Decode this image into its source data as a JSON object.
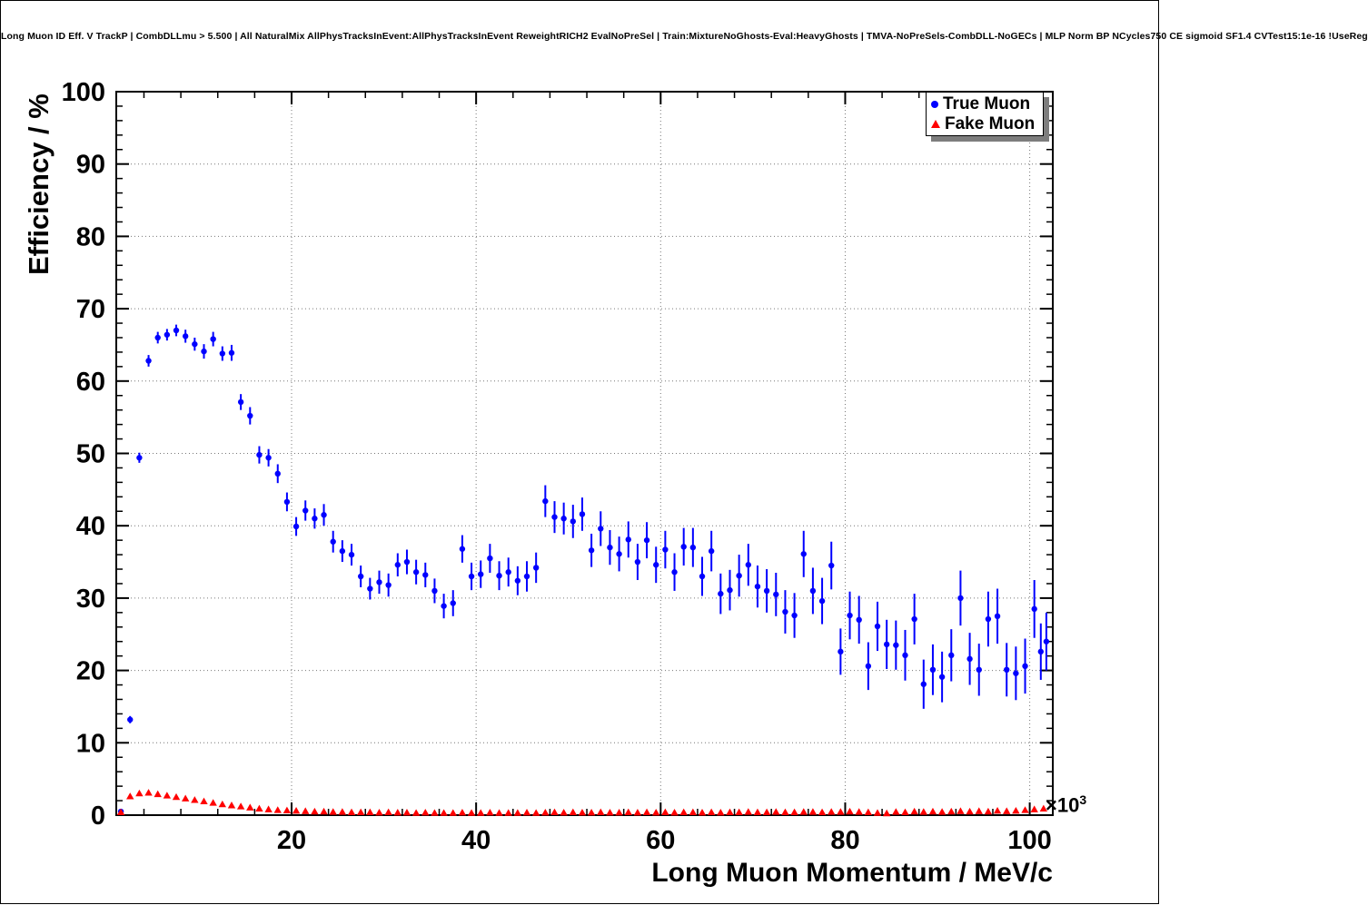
{
  "chart_data": {
    "type": "scatter",
    "title": "Long Muon ID Eff. V TrackP | CombDLLmu > 5.500 | All NaturalMix AllPhysTracksInEvent:AllPhysTracksInEvent ReweightRICH2 EvalNoPreSel | Train:MixtureNoGhosts-Eval:HeavyGhosts | TMVA-NoPreSels-CombDLL-NoGECs | MLP Norm BP NCycles750 CE sigmoid SF1.4 CVTest15:1e-16 !UseReg",
    "xlabel": "Long Muon Momentum / MeV/c",
    "ylabel": "Efficiency / %",
    "x_scale_base": "×10",
    "x_scale_exp": "3",
    "xlim": [
      1000,
      102500
    ],
    "ylim": [
      0,
      100
    ],
    "grid": true,
    "legend_position": "top-right",
    "x_major_step": 20000,
    "x_minor_step": 4000,
    "y_minor_step": 2,
    "x_ticks": [
      {
        "value": 20000,
        "label": "20"
      },
      {
        "value": 40000,
        "label": "40"
      },
      {
        "value": 60000,
        "label": "60"
      },
      {
        "value": 80000,
        "label": "80"
      },
      {
        "value": 100000,
        "label": "100"
      }
    ],
    "y_ticks": [
      {
        "value": 0,
        "label": "0"
      },
      {
        "value": 10,
        "label": "10"
      },
      {
        "value": 20,
        "label": "20"
      },
      {
        "value": 30,
        "label": "30"
      },
      {
        "value": 40,
        "label": "40"
      },
      {
        "value": 50,
        "label": "50"
      },
      {
        "value": 60,
        "label": "60"
      },
      {
        "value": 70,
        "label": "70"
      },
      {
        "value": 80,
        "label": "80"
      },
      {
        "value": 90,
        "label": "90"
      },
      {
        "value": 100,
        "label": "100"
      }
    ],
    "series": [
      {
        "name": "True Muon",
        "marker": "circle",
        "color": "#0000ff",
        "points": [
          [
            1500,
            0.5,
            0.3
          ],
          [
            2500,
            13.2,
            0.5
          ],
          [
            3500,
            49.4,
            0.7
          ],
          [
            4500,
            62.8,
            0.8
          ],
          [
            5500,
            66.0,
            0.8
          ],
          [
            6500,
            66.4,
            0.8
          ],
          [
            7500,
            67.0,
            0.8
          ],
          [
            8500,
            66.2,
            0.9
          ],
          [
            9500,
            65.1,
            0.9
          ],
          [
            10500,
            64.1,
            1.0
          ],
          [
            11500,
            65.8,
            1.0
          ],
          [
            12500,
            63.8,
            1.0
          ],
          [
            13500,
            63.9,
            1.1
          ],
          [
            14500,
            57.1,
            1.1
          ],
          [
            15500,
            55.2,
            1.2
          ],
          [
            16500,
            49.8,
            1.2
          ],
          [
            17500,
            49.4,
            1.2
          ],
          [
            18500,
            47.2,
            1.3
          ],
          [
            19500,
            43.3,
            1.3
          ],
          [
            20500,
            39.9,
            1.3
          ],
          [
            21500,
            42.1,
            1.4
          ],
          [
            22500,
            41.0,
            1.4
          ],
          [
            23500,
            41.5,
            1.5
          ],
          [
            24500,
            37.8,
            1.5
          ],
          [
            25500,
            36.5,
            1.5
          ],
          [
            26500,
            36.0,
            1.5
          ],
          [
            27500,
            33.0,
            1.5
          ],
          [
            28500,
            31.3,
            1.5
          ],
          [
            29500,
            32.2,
            1.6
          ],
          [
            30500,
            31.8,
            1.6
          ],
          [
            31500,
            34.6,
            1.6
          ],
          [
            32500,
            35.0,
            1.7
          ],
          [
            33500,
            33.6,
            1.7
          ],
          [
            34500,
            33.2,
            1.7
          ],
          [
            35500,
            31.0,
            1.7
          ],
          [
            36500,
            28.9,
            1.7
          ],
          [
            37500,
            29.3,
            1.8
          ],
          [
            38500,
            36.8,
            1.9
          ],
          [
            39500,
            33.0,
            1.9
          ],
          [
            40500,
            33.3,
            1.9
          ],
          [
            41500,
            35.5,
            2.0
          ],
          [
            42500,
            33.1,
            2.0
          ],
          [
            43500,
            33.6,
            2.0
          ],
          [
            44500,
            32.4,
            2.0
          ],
          [
            45500,
            33.0,
            2.1
          ],
          [
            46500,
            34.2,
            2.1
          ],
          [
            47500,
            43.4,
            2.2
          ],
          [
            48500,
            41.2,
            2.2
          ],
          [
            49500,
            41.0,
            2.2
          ],
          [
            50500,
            40.6,
            2.3
          ],
          [
            51500,
            41.6,
            2.3
          ],
          [
            52500,
            36.6,
            2.3
          ],
          [
            53500,
            39.6,
            2.4
          ],
          [
            54500,
            37.0,
            2.4
          ],
          [
            55500,
            36.1,
            2.4
          ],
          [
            56500,
            38.1,
            2.5
          ],
          [
            57500,
            35.0,
            2.5
          ],
          [
            58500,
            38.0,
            2.5
          ],
          [
            59500,
            34.6,
            2.5
          ],
          [
            60500,
            36.7,
            2.6
          ],
          [
            61500,
            33.6,
            2.6
          ],
          [
            62500,
            37.1,
            2.6
          ],
          [
            63500,
            37.0,
            2.7
          ],
          [
            64500,
            33.0,
            2.7
          ],
          [
            65500,
            36.5,
            2.8
          ],
          [
            66500,
            30.6,
            2.8
          ],
          [
            67500,
            31.1,
            2.8
          ],
          [
            68500,
            33.1,
            2.9
          ],
          [
            69500,
            34.6,
            2.9
          ],
          [
            70500,
            31.6,
            2.9
          ],
          [
            71500,
            31.0,
            3.0
          ],
          [
            72500,
            30.5,
            3.0
          ],
          [
            73500,
            28.1,
            3.0
          ],
          [
            74500,
            27.6,
            3.1
          ],
          [
            75500,
            36.1,
            3.2
          ],
          [
            76500,
            31.0,
            3.2
          ],
          [
            77500,
            29.6,
            3.2
          ],
          [
            78500,
            34.5,
            3.3
          ],
          [
            79500,
            22.6,
            3.2
          ],
          [
            80500,
            27.6,
            3.3
          ],
          [
            81500,
            27.0,
            3.3
          ],
          [
            82500,
            20.6,
            3.3
          ],
          [
            83500,
            26.1,
            3.4
          ],
          [
            84500,
            23.6,
            3.4
          ],
          [
            85500,
            23.5,
            3.4
          ],
          [
            86500,
            22.1,
            3.5
          ],
          [
            87500,
            27.1,
            3.5
          ],
          [
            88500,
            18.1,
            3.4
          ],
          [
            89500,
            20.1,
            3.5
          ],
          [
            90500,
            19.1,
            3.5
          ],
          [
            91500,
            22.1,
            3.6
          ],
          [
            92500,
            30.0,
            3.8
          ],
          [
            93500,
            21.6,
            3.6
          ],
          [
            94500,
            20.1,
            3.6
          ],
          [
            95500,
            27.1,
            3.8
          ],
          [
            96500,
            27.5,
            3.8
          ],
          [
            97500,
            20.1,
            3.7
          ],
          [
            98500,
            19.6,
            3.7
          ],
          [
            99500,
            20.6,
            3.8
          ],
          [
            100500,
            28.5,
            4.0
          ],
          [
            101200,
            22.6,
            3.9
          ],
          [
            101800,
            24.0,
            4.0
          ]
        ]
      },
      {
        "name": "Fake Muon",
        "marker": "triangle",
        "color": "#ff0000",
        "points": [
          [
            1500,
            0.4,
            0.1
          ],
          [
            2500,
            2.6,
            0.1
          ],
          [
            3500,
            3.0,
            0.1
          ],
          [
            4500,
            3.1,
            0.1
          ],
          [
            5500,
            2.9,
            0.1
          ],
          [
            6500,
            2.7,
            0.1
          ],
          [
            7500,
            2.5,
            0.1
          ],
          [
            8500,
            2.3,
            0.1
          ],
          [
            9500,
            2.1,
            0.1
          ],
          [
            10500,
            1.9,
            0.1
          ],
          [
            11500,
            1.7,
            0.1
          ],
          [
            12500,
            1.5,
            0.1
          ],
          [
            13500,
            1.35,
            0.1
          ],
          [
            14500,
            1.2,
            0.1
          ],
          [
            15500,
            1.05,
            0.1
          ],
          [
            16500,
            0.9,
            0.08
          ],
          [
            17500,
            0.8,
            0.08
          ],
          [
            18500,
            0.7,
            0.07
          ],
          [
            19500,
            0.65,
            0.07
          ],
          [
            20500,
            0.6,
            0.06
          ],
          [
            21500,
            0.55,
            0.06
          ],
          [
            22500,
            0.5,
            0.06
          ],
          [
            23500,
            0.5,
            0.06
          ],
          [
            24500,
            0.45,
            0.05
          ],
          [
            25500,
            0.45,
            0.05
          ],
          [
            26500,
            0.4,
            0.05
          ],
          [
            27500,
            0.4,
            0.05
          ],
          [
            28500,
            0.4,
            0.05
          ],
          [
            29500,
            0.35,
            0.05
          ],
          [
            30500,
            0.4,
            0.05
          ],
          [
            31500,
            0.35,
            0.05
          ],
          [
            32500,
            0.35,
            0.05
          ],
          [
            33500,
            0.3,
            0.05
          ],
          [
            34500,
            0.35,
            0.05
          ],
          [
            35500,
            0.3,
            0.05
          ],
          [
            36500,
            0.3,
            0.05
          ],
          [
            37500,
            0.3,
            0.05
          ],
          [
            38500,
            0.35,
            0.05
          ],
          [
            39500,
            0.3,
            0.05
          ],
          [
            40500,
            0.3,
            0.05
          ],
          [
            41500,
            0.35,
            0.05
          ],
          [
            42500,
            0.3,
            0.05
          ],
          [
            43500,
            0.3,
            0.05
          ],
          [
            44500,
            0.3,
            0.05
          ],
          [
            45500,
            0.35,
            0.05
          ],
          [
            46500,
            0.3,
            0.05
          ],
          [
            47500,
            0.35,
            0.05
          ],
          [
            48500,
            0.4,
            0.05
          ],
          [
            49500,
            0.35,
            0.05
          ],
          [
            50500,
            0.4,
            0.05
          ],
          [
            51500,
            0.35,
            0.05
          ],
          [
            52500,
            0.35,
            0.05
          ],
          [
            53500,
            0.4,
            0.05
          ],
          [
            54500,
            0.35,
            0.05
          ],
          [
            55500,
            0.35,
            0.05
          ],
          [
            56500,
            0.4,
            0.06
          ],
          [
            57500,
            0.35,
            0.06
          ],
          [
            58500,
            0.4,
            0.06
          ],
          [
            59500,
            0.35,
            0.06
          ],
          [
            60500,
            0.4,
            0.06
          ],
          [
            61500,
            0.35,
            0.06
          ],
          [
            62500,
            0.4,
            0.07
          ],
          [
            63500,
            0.4,
            0.07
          ],
          [
            64500,
            0.35,
            0.07
          ],
          [
            65500,
            0.4,
            0.07
          ],
          [
            66500,
            0.35,
            0.07
          ],
          [
            67500,
            0.4,
            0.08
          ],
          [
            68500,
            0.4,
            0.08
          ],
          [
            69500,
            0.45,
            0.08
          ],
          [
            70500,
            0.4,
            0.08
          ],
          [
            71500,
            0.4,
            0.08
          ],
          [
            72500,
            0.45,
            0.09
          ],
          [
            73500,
            0.4,
            0.09
          ],
          [
            74500,
            0.4,
            0.09
          ],
          [
            75500,
            0.45,
            0.09
          ],
          [
            76500,
            0.45,
            0.09
          ],
          [
            77500,
            0.4,
            0.09
          ],
          [
            78500,
            0.45,
            0.1
          ],
          [
            79500,
            0.45,
            0.1
          ],
          [
            80500,
            0.5,
            0.1
          ],
          [
            81500,
            0.45,
            0.1
          ],
          [
            82500,
            0.4,
            0.1
          ],
          [
            83500,
            0.3,
            0.1
          ],
          [
            84500,
            0.25,
            0.1
          ],
          [
            85500,
            0.45,
            0.1
          ],
          [
            86500,
            0.4,
            0.1
          ],
          [
            87500,
            0.5,
            0.1
          ],
          [
            88500,
            0.45,
            0.12
          ],
          [
            89500,
            0.5,
            0.12
          ],
          [
            90500,
            0.45,
            0.12
          ],
          [
            91500,
            0.5,
            0.12
          ],
          [
            92500,
            0.55,
            0.13
          ],
          [
            93500,
            0.5,
            0.13
          ],
          [
            94500,
            0.55,
            0.13
          ],
          [
            95500,
            0.5,
            0.13
          ],
          [
            96500,
            0.6,
            0.14
          ],
          [
            97500,
            0.55,
            0.14
          ],
          [
            98500,
            0.6,
            0.15
          ],
          [
            99500,
            0.7,
            0.15
          ],
          [
            100500,
            0.8,
            0.18
          ],
          [
            101500,
            0.9,
            0.2
          ]
        ]
      }
    ]
  }
}
